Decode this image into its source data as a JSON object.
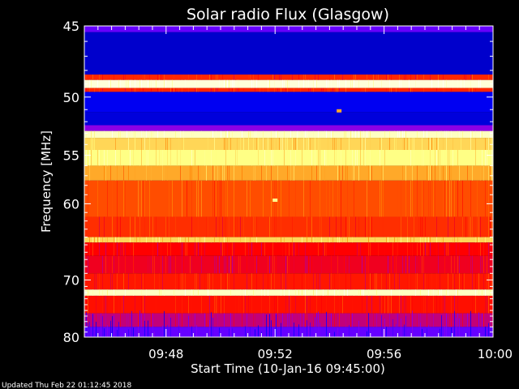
{
  "chart_data": {
    "type": "heatmap",
    "title": "Solar radio Flux (Glasgow)",
    "ylabel": "Frequency [MHz]",
    "xlabel": "Start Time (10-Jan-16 09:45:00)",
    "footer": "Updated Thu Feb 22 01:12:45 2018",
    "x_ticks": [
      "09:48",
      "09:52",
      "09:56",
      "10:00"
    ],
    "x_tick_minutes": [
      3,
      7,
      11,
      15
    ],
    "xlim_minutes": [
      0,
      15
    ],
    "y_ticks": [
      45,
      50,
      55,
      60,
      70,
      80
    ],
    "ylim_mhz": [
      45,
      80
    ],
    "y_scale": "reciprocal",
    "colormap": [
      "#000080",
      "#0000ff",
      "#8000ff",
      "#ff0000",
      "#ff8000",
      "#ffff80",
      "#ffffff"
    ],
    "frequency_bands": [
      {
        "mhz": [
          45.0,
          45.4
        ],
        "level": 0.3
      },
      {
        "mhz": [
          45.4,
          48.3
        ],
        "level": 0.1
      },
      {
        "mhz": [
          48.3,
          48.7
        ],
        "level": 0.55
      },
      {
        "mhz": [
          48.7,
          49.3
        ],
        "level": 0.95
      },
      {
        "mhz": [
          49.3,
          49.6
        ],
        "level": 0.55
      },
      {
        "mhz": [
          49.6,
          51.2
        ],
        "level": 0.15
      },
      {
        "mhz": [
          51.2,
          52.3
        ],
        "level": 0.12
      },
      {
        "mhz": [
          52.3,
          52.8
        ],
        "level": 0.35
      },
      {
        "mhz": [
          52.8,
          53.4
        ],
        "level": 0.92
      },
      {
        "mhz": [
          53.4,
          54.5
        ],
        "level": 0.78
      },
      {
        "mhz": [
          54.5,
          56.0
        ],
        "level": 0.84
      },
      {
        "mhz": [
          56.0,
          57.5
        ],
        "level": 0.72
      },
      {
        "mhz": [
          57.5,
          61.5
        ],
        "level": 0.6
      },
      {
        "mhz": [
          61.5,
          64.0
        ],
        "level": 0.56
      },
      {
        "mhz": [
          64.0,
          64.7
        ],
        "level": 0.78
      },
      {
        "mhz": [
          64.7,
          66.5
        ],
        "level": 0.5
      },
      {
        "mhz": [
          66.5,
          69.0
        ],
        "level": 0.48
      },
      {
        "mhz": [
          69.0,
          71.5
        ],
        "level": 0.53
      },
      {
        "mhz": [
          71.5,
          72.5
        ],
        "level": 0.92
      },
      {
        "mhz": [
          72.5,
          75.5
        ],
        "level": 0.52
      },
      {
        "mhz": [
          75.5,
          78.0
        ],
        "level": 0.42
      },
      {
        "mhz": [
          78.0,
          80.0
        ],
        "level": 0.3
      }
    ],
    "events": [
      {
        "minute": 7.0,
        "mhz": 59.6,
        "level": 0.85
      },
      {
        "minute": 9.35,
        "mhz": 51.1,
        "level": 0.72
      }
    ]
  }
}
